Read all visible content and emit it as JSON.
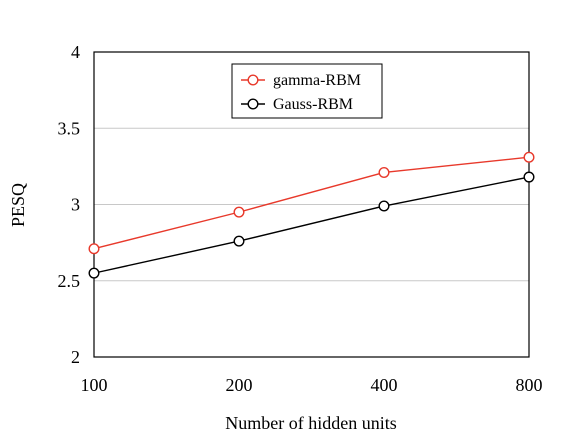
{
  "chart_data": {
    "type": "line",
    "title": "",
    "xlabel": "Number of hidden units",
    "ylabel": "PESQ",
    "categories": [
      "100",
      "200",
      "400",
      "800"
    ],
    "ylim": [
      2,
      4
    ],
    "yticks": [
      "2",
      "2.5",
      "3",
      "3.5",
      "4"
    ],
    "grid": "horizontal",
    "legend_position": "top-center",
    "series": [
      {
        "name": "gamma-RBM",
        "color": "#e8392b",
        "marker": "open-circle",
        "values": [
          2.71,
          2.95,
          3.21,
          3.31
        ]
      },
      {
        "name": "Gauss-RBM",
        "color": "#000000",
        "marker": "open-circle",
        "values": [
          2.55,
          2.76,
          2.99,
          3.18
        ]
      }
    ]
  }
}
